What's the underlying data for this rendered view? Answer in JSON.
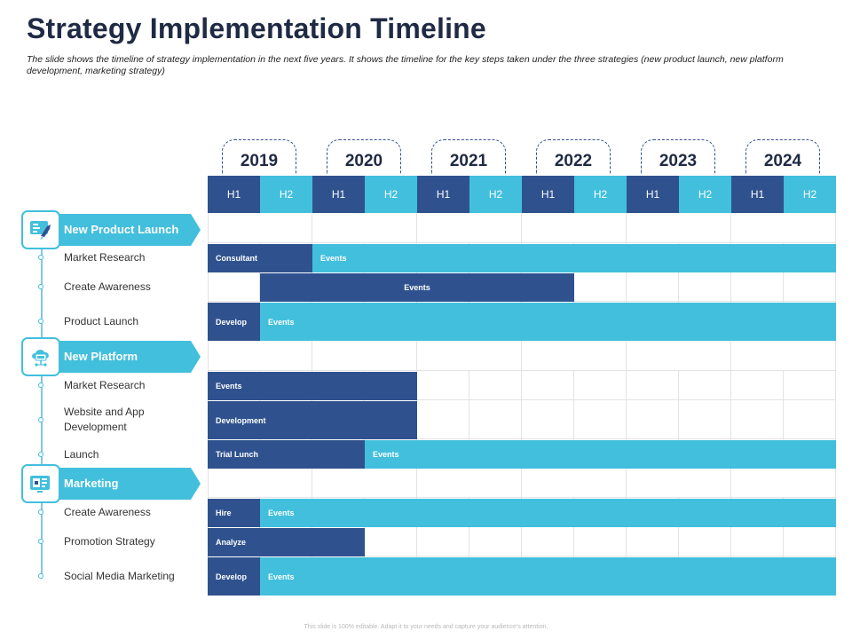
{
  "header": {
    "title": "Strategy Implementation Timeline",
    "subtitle": "The slide shows the timeline of strategy implementation in the next five years. It shows the timeline for the key steps taken under the three strategies (new product launch, new platform development, marketing strategy)"
  },
  "footer": "This slide is 100% editable. Adapt it to your needs and capture your audience's attention.",
  "timeline": {
    "years": [
      "2019",
      "2020",
      "2021",
      "2022",
      "2023",
      "2024"
    ],
    "halves": [
      "H1",
      "H2"
    ]
  },
  "categories": [
    {
      "name": "New Product Launch",
      "icon": "product-launch-icon"
    },
    {
      "name": "New Platform",
      "icon": "cloud-platform-icon"
    },
    {
      "name": "Marketing",
      "icon": "marketing-screen-icon"
    }
  ],
  "tasks": [
    {
      "label": "Market Research",
      "bars": [
        {
          "text": "Consultant",
          "color": "dark",
          "start_half": 0,
          "end_half": 2
        },
        {
          "text": "Events",
          "color": "light",
          "start_half": 2,
          "end_half": 12
        }
      ]
    },
    {
      "label": "Create Awareness",
      "bars": [
        {
          "text": "Events",
          "color": "dark",
          "start_half": 1,
          "end_half": 7,
          "align": "center"
        }
      ]
    },
    {
      "label": "Product Launch",
      "bars": [
        {
          "text": "Develop",
          "color": "dark",
          "start_half": 0,
          "end_half": 1
        },
        {
          "text": "Events",
          "color": "light",
          "start_half": 1,
          "end_half": 12
        }
      ]
    },
    {
      "label": "Market Research",
      "bars": [
        {
          "text": "Events",
          "color": "dark",
          "start_half": 0,
          "end_half": 4
        }
      ]
    },
    {
      "label": "Website and App Development",
      "bars": [
        {
          "text": "Development",
          "color": "dark",
          "start_half": 0,
          "end_half": 4
        }
      ]
    },
    {
      "label": "Launch",
      "bars": [
        {
          "text": "Trial Lunch",
          "color": "dark",
          "start_half": 0,
          "end_half": 3
        },
        {
          "text": "Events",
          "color": "light",
          "start_half": 3,
          "end_half": 12
        }
      ]
    },
    {
      "label": "Create Awareness",
      "bars": [
        {
          "text": "Hire",
          "color": "dark",
          "start_half": 0,
          "end_half": 1
        },
        {
          "text": "Events",
          "color": "light",
          "start_half": 1,
          "end_half": 12
        }
      ]
    },
    {
      "label": "Promotion Strategy",
      "bars": [
        {
          "text": "Analyze",
          "color": "dark",
          "start_half": 0,
          "end_half": 3
        }
      ]
    },
    {
      "label": "Social Media Marketing",
      "bars": [
        {
          "text": "Develop",
          "color": "dark",
          "start_half": 0,
          "end_half": 1
        },
        {
          "text": "Events",
          "color": "light",
          "start_half": 1,
          "end_half": 12
        }
      ]
    }
  ],
  "colors": {
    "dark": "#2f528f",
    "light": "#42bfdd",
    "title": "#1f2a44"
  }
}
